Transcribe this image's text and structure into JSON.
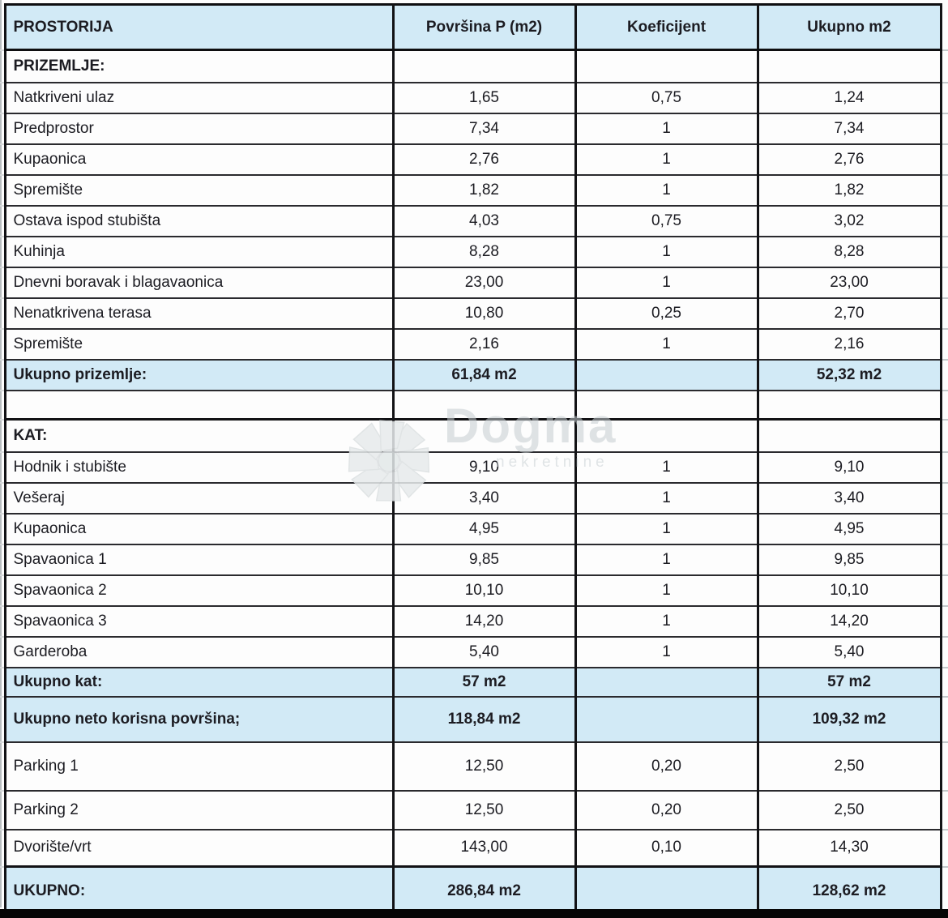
{
  "table": {
    "columns": [
      "PROSTORIJA",
      "Površina P (m2)",
      "Koeficijent",
      "Ukupno m2"
    ],
    "rows": [
      {
        "type": "section",
        "name": "PRIZEMLJE:",
        "p": "",
        "k": "",
        "u": ""
      },
      {
        "type": "data",
        "name": "Natkriveni ulaz",
        "p": "1,65",
        "k": "0,75",
        "u": "1,24"
      },
      {
        "type": "data",
        "name": "Predprostor",
        "p": "7,34",
        "k": "1",
        "u": "7,34"
      },
      {
        "type": "data",
        "name": "Kupaonica",
        "p": "2,76",
        "k": "1",
        "u": "2,76"
      },
      {
        "type": "data",
        "name": "Spremište",
        "p": "1,82",
        "k": "1",
        "u": "1,82"
      },
      {
        "type": "data",
        "name": "Ostava ispod stubišta",
        "p": "4,03",
        "k": "0,75",
        "u": "3,02"
      },
      {
        "type": "data",
        "name": "Kuhinja",
        "p": "8,28",
        "k": "1",
        "u": "8,28"
      },
      {
        "type": "data",
        "name": "Dnevni boravak i blagavaonica",
        "p": "23,00",
        "k": "1",
        "u": "23,00"
      },
      {
        "type": "data",
        "name": "Nenatkrivena terasa",
        "p": "10,80",
        "k": "0,25",
        "u": "2,70"
      },
      {
        "type": "data",
        "name": "Spremište",
        "p": "2,16",
        "k": "1",
        "u": "2,16"
      },
      {
        "type": "total",
        "name": "Ukupno prizemlje:",
        "p": "61,84 m2",
        "k": "",
        "u": "52,32 m2"
      },
      {
        "type": "empty",
        "name": "",
        "p": "",
        "k": "",
        "u": ""
      },
      {
        "type": "section",
        "name": "KAT:",
        "p": "",
        "k": "",
        "u": ""
      },
      {
        "type": "data",
        "name": "Hodnik i stubište",
        "p": "9,10",
        "k": "1",
        "u": "9,10"
      },
      {
        "type": "data",
        "name": "Vešeraj",
        "p": "3,40",
        "k": "1",
        "u": "3,40"
      },
      {
        "type": "data",
        "name": "Kupaonica",
        "p": "4,95",
        "k": "1",
        "u": "4,95"
      },
      {
        "type": "data",
        "name": "Spavaonica 1",
        "p": "9,85",
        "k": "1",
        "u": "9,85"
      },
      {
        "type": "data",
        "name": "Spavaonica 2",
        "p": "10,10",
        "k": "1",
        "u": "10,10"
      },
      {
        "type": "data",
        "name": "Spavaonica 3",
        "p": "14,20",
        "k": "1",
        "u": "14,20"
      },
      {
        "type": "data",
        "name": "Garderoba",
        "p": "5,40",
        "k": "1",
        "u": "5,40"
      },
      {
        "type": "total",
        "name": "Ukupno kat:",
        "p": "57 m2",
        "k": "",
        "u": "57 m2"
      },
      {
        "type": "total",
        "name": "Ukupno neto korisna površina;",
        "p": "118,84 m2",
        "k": "",
        "u": "109,32 m2"
      },
      {
        "type": "data",
        "name": "Parking 1",
        "p": "12,50",
        "k": "0,20",
        "u": "2,50"
      },
      {
        "type": "data",
        "name": "Parking 2",
        "p": "12,50",
        "k": "0,20",
        "u": "2,50"
      },
      {
        "type": "data",
        "name": "Dvorište/vrt",
        "p": "143,00",
        "k": "0,10",
        "u": "14,30"
      },
      {
        "type": "total",
        "name": "UKUPNO:",
        "p": "286,84 m2",
        "k": "",
        "u": "128,62 m2"
      }
    ]
  },
  "watermark": {
    "brand": "Dogma",
    "sub": "nekretnine"
  },
  "colors": {
    "header_fill": "#d2eaf6",
    "total_fill": "#d2eaf6",
    "grid_line": "#1a1a1e",
    "text": "#1c1c22",
    "bottom_bar": "#060606",
    "watermark_gray": "#c9d0d4"
  }
}
